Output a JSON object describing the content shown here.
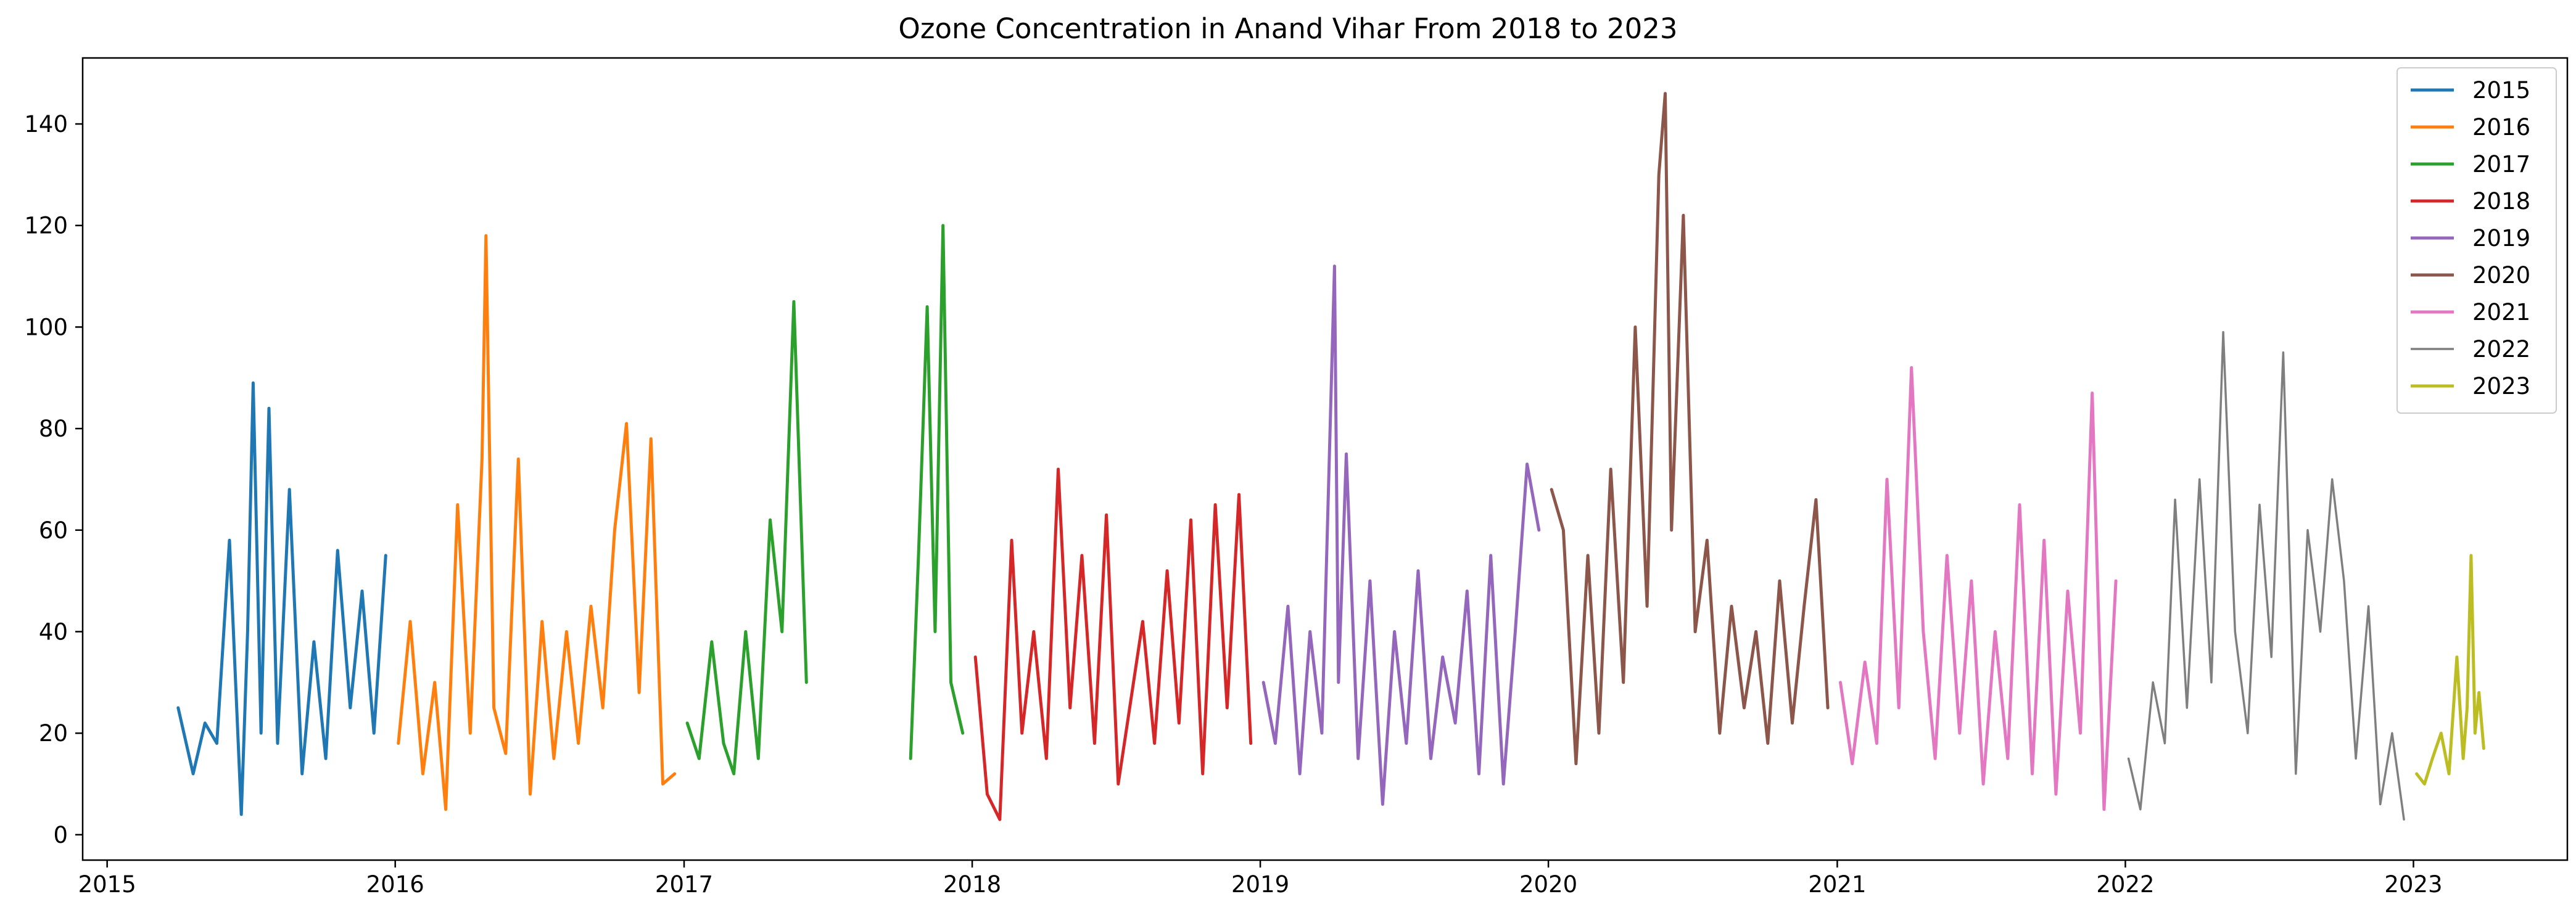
{
  "chart_data": {
    "type": "line",
    "title": "Ozone Concentration in Anand Vihar From 2018 to 2023",
    "xlabel": "",
    "ylabel": "",
    "x_axis_type": "date",
    "xlim": [
      "2014-12-01",
      "2023-07-15"
    ],
    "ylim": [
      -5,
      153
    ],
    "x_ticks": [
      "2015-01-01",
      "2016-01-01",
      "2017-01-01",
      "2018-01-01",
      "2019-01-01",
      "2020-01-01",
      "2021-01-01",
      "2022-01-01",
      "2023-01-01"
    ],
    "x_tick_labels": [
      "2015",
      "2016",
      "2017",
      "2018",
      "2019",
      "2020",
      "2021",
      "2022",
      "2023"
    ],
    "y_ticks": [
      0,
      20,
      40,
      60,
      80,
      100,
      120,
      140
    ],
    "y_tick_labels": [
      "0",
      "20",
      "40",
      "60",
      "80",
      "100",
      "120",
      "140"
    ],
    "grid": false,
    "legend_position": "top-right",
    "series": [
      {
        "name": "2015",
        "color": "#1f77b4",
        "x": [
          "2015-04-01",
          "2015-04-20",
          "2015-05-05",
          "2015-05-20",
          "2015-06-05",
          "2015-06-20",
          "2015-06-28",
          "2015-07-05",
          "2015-07-15",
          "2015-07-25",
          "2015-08-05",
          "2015-08-20",
          "2015-09-05",
          "2015-09-20",
          "2015-10-05",
          "2015-10-20",
          "2015-11-05",
          "2015-11-20",
          "2015-12-05",
          "2015-12-20"
        ],
        "values": [
          25,
          12,
          22,
          18,
          58,
          4,
          40,
          89,
          20,
          84,
          18,
          68,
          12,
          38,
          15,
          56,
          25,
          48,
          20,
          55
        ]
      },
      {
        "name": "2016",
        "color": "#ff7f0e",
        "x": [
          "2016-01-05",
          "2016-01-20",
          "2016-02-05",
          "2016-02-20",
          "2016-03-05",
          "2016-03-20",
          "2016-04-05",
          "2016-04-20",
          "2016-04-25",
          "2016-05-05",
          "2016-05-20",
          "2016-06-05",
          "2016-06-20",
          "2016-07-05",
          "2016-07-20",
          "2016-08-05",
          "2016-08-20",
          "2016-09-05",
          "2016-09-20",
          "2016-10-05",
          "2016-10-20",
          "2016-11-05",
          "2016-11-20",
          "2016-12-05",
          "2016-12-20"
        ],
        "values": [
          18,
          42,
          12,
          30,
          5,
          65,
          20,
          74,
          118,
          25,
          16,
          74,
          8,
          42,
          15,
          40,
          18,
          45,
          25,
          60,
          81,
          28,
          78,
          10,
          12
        ]
      },
      {
        "name": "2017",
        "color": "#2ca02c",
        "x": [
          "2017-01-05",
          "2017-01-20",
          "2017-02-05",
          "2017-02-20",
          "2017-03-05",
          "2017-03-20",
          "2017-04-05",
          "2017-04-20",
          "2017-05-05",
          "2017-05-20",
          "2017-06-05",
          "2017-10-15",
          "2017-10-25",
          "2017-11-05",
          "2017-11-15",
          "2017-11-25",
          "2017-12-05",
          "2017-12-20"
        ],
        "values": [
          22,
          15,
          38,
          18,
          12,
          40,
          15,
          62,
          40,
          105,
          30,
          15,
          55,
          104,
          40,
          120,
          30,
          20
        ]
      },
      {
        "name": "2018",
        "color": "#d62728",
        "x": [
          "2018-01-05",
          "2018-01-20",
          "2018-02-05",
          "2018-02-20",
          "2018-03-05",
          "2018-03-20",
          "2018-04-05",
          "2018-04-20",
          "2018-05-05",
          "2018-05-20",
          "2018-06-05",
          "2018-06-20",
          "2018-07-05",
          "2018-08-05",
          "2018-08-20",
          "2018-09-05",
          "2018-09-20",
          "2018-10-05",
          "2018-10-20",
          "2018-11-05",
          "2018-11-20",
          "2018-12-05",
          "2018-12-20"
        ],
        "values": [
          35,
          8,
          3,
          58,
          20,
          40,
          15,
          72,
          25,
          55,
          18,
          63,
          10,
          42,
          18,
          52,
          22,
          62,
          12,
          65,
          25,
          67,
          18
        ]
      },
      {
        "name": "2019",
        "color": "#9467bd",
        "x": [
          "2019-01-05",
          "2019-01-20",
          "2019-02-05",
          "2019-02-20",
          "2019-03-05",
          "2019-03-20",
          "2019-04-05",
          "2019-04-10",
          "2019-04-20",
          "2019-05-05",
          "2019-05-20",
          "2019-06-05",
          "2019-06-20",
          "2019-07-05",
          "2019-07-20",
          "2019-08-05",
          "2019-08-20",
          "2019-09-05",
          "2019-09-20",
          "2019-10-05",
          "2019-10-20",
          "2019-11-05",
          "2019-11-20",
          "2019-12-05",
          "2019-12-20"
        ],
        "values": [
          30,
          18,
          45,
          12,
          40,
          20,
          112,
          30,
          75,
          15,
          50,
          6,
          40,
          18,
          52,
          15,
          35,
          22,
          48,
          12,
          55,
          10,
          40,
          73,
          60
        ]
      },
      {
        "name": "2020",
        "color": "#8c564b",
        "x": [
          "2020-01-05",
          "2020-01-20",
          "2020-02-05",
          "2020-02-20",
          "2020-03-05",
          "2020-03-20",
          "2020-04-05",
          "2020-04-20",
          "2020-05-05",
          "2020-05-20",
          "2020-05-28",
          "2020-06-05",
          "2020-06-20",
          "2020-07-05",
          "2020-07-20",
          "2020-08-05",
          "2020-08-20",
          "2020-09-05",
          "2020-09-20",
          "2020-10-05",
          "2020-10-20",
          "2020-11-05",
          "2020-11-20",
          "2020-12-05",
          "2020-12-20"
        ],
        "values": [
          68,
          60,
          14,
          55,
          20,
          72,
          30,
          100,
          45,
          130,
          146,
          60,
          122,
          40,
          58,
          20,
          45,
          25,
          40,
          18,
          50,
          22,
          45,
          66,
          25
        ]
      },
      {
        "name": "2021",
        "color": "#e377c2",
        "x": [
          "2021-01-05",
          "2021-01-20",
          "2021-02-05",
          "2021-02-20",
          "2021-03-05",
          "2021-03-20",
          "2021-04-05",
          "2021-04-20",
          "2021-05-05",
          "2021-05-20",
          "2021-06-05",
          "2021-06-20",
          "2021-07-05",
          "2021-07-20",
          "2021-08-05",
          "2021-08-20",
          "2021-09-05",
          "2021-09-20",
          "2021-10-05",
          "2021-10-20",
          "2021-11-05",
          "2021-11-20",
          "2021-12-05",
          "2021-12-20"
        ],
        "values": [
          30,
          14,
          34,
          18,
          70,
          25,
          92,
          40,
          15,
          55,
          20,
          50,
          10,
          40,
          15,
          65,
          12,
          58,
          8,
          48,
          20,
          87,
          5,
          50
        ]
      },
      {
        "name": "2022",
        "color": "#7f7f7f",
        "x": [
          "2022-01-05",
          "2022-01-20",
          "2022-02-05",
          "2022-02-20",
          "2022-03-05",
          "2022-03-20",
          "2022-04-05",
          "2022-04-20",
          "2022-05-05",
          "2022-05-20",
          "2022-06-05",
          "2022-06-20",
          "2022-07-05",
          "2022-07-20",
          "2022-08-05",
          "2022-08-20",
          "2022-09-05",
          "2022-09-20",
          "2022-10-05",
          "2022-10-20",
          "2022-11-05",
          "2022-11-20",
          "2022-12-05",
          "2022-12-20"
        ],
        "values": [
          15,
          5,
          30,
          18,
          66,
          25,
          70,
          30,
          99,
          40,
          20,
          65,
          35,
          95,
          12,
          60,
          40,
          70,
          50,
          15,
          45,
          6,
          20,
          3
        ]
      },
      {
        "name": "2023",
        "color": "#bcbd22",
        "x": [
          "2023-01-05",
          "2023-01-15",
          "2023-01-25",
          "2023-02-05",
          "2023-02-15",
          "2023-02-25",
          "2023-03-05",
          "2023-03-10",
          "2023-03-15",
          "2023-03-20",
          "2023-03-25",
          "2023-03-31"
        ],
        "values": [
          12,
          10,
          15,
          20,
          12,
          35,
          15,
          25,
          55,
          20,
          28,
          17
        ]
      }
    ]
  }
}
